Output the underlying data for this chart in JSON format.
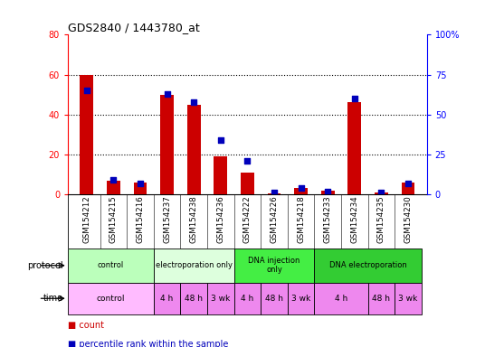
{
  "title": "GDS2840 / 1443780_at",
  "samples": [
    "GSM154212",
    "GSM154215",
    "GSM154216",
    "GSM154237",
    "GSM154238",
    "GSM154236",
    "GSM154222",
    "GSM154226",
    "GSM154218",
    "GSM154233",
    "GSM154234",
    "GSM154235",
    "GSM154230"
  ],
  "counts": [
    60,
    7,
    6,
    50,
    45,
    19,
    11,
    0.5,
    3,
    2,
    46,
    1,
    6
  ],
  "percentile_ranks": [
    65,
    9,
    7,
    63,
    58,
    34,
    21,
    1,
    4,
    2,
    60,
    1,
    7
  ],
  "ylim_left": [
    0,
    80
  ],
  "ylim_right": [
    0,
    100
  ],
  "yticks_left": [
    0,
    20,
    40,
    60,
    80
  ],
  "yticks_right": [
    0,
    25,
    50,
    75,
    100
  ],
  "ytick_labels_left": [
    "0",
    "20",
    "40",
    "60",
    "80"
  ],
  "ytick_labels_right": [
    "0",
    "25",
    "50",
    "75",
    "100%"
  ],
  "bar_color": "#cc0000",
  "dot_color": "#0000bb",
  "protocol_row": [
    {
      "label": "control",
      "start": 0,
      "end": 3,
      "color": "#bbffbb"
    },
    {
      "label": "electroporation only",
      "start": 3,
      "end": 6,
      "color": "#ddffdd"
    },
    {
      "label": "DNA injection\nonly",
      "start": 6,
      "end": 9,
      "color": "#44ee44"
    },
    {
      "label": "DNA electroporation",
      "start": 9,
      "end": 13,
      "color": "#33cc33"
    }
  ],
  "time_row": [
    {
      "label": "control",
      "start": 0,
      "end": 3,
      "color": "#ffbbff"
    },
    {
      "label": "4 h",
      "start": 3,
      "end": 4,
      "color": "#ee88ee"
    },
    {
      "label": "48 h",
      "start": 4,
      "end": 5,
      "color": "#ee88ee"
    },
    {
      "label": "3 wk",
      "start": 5,
      "end": 6,
      "color": "#ee88ee"
    },
    {
      "label": "4 h",
      "start": 6,
      "end": 7,
      "color": "#ee88ee"
    },
    {
      "label": "48 h",
      "start": 7,
      "end": 8,
      "color": "#ee88ee"
    },
    {
      "label": "3 wk",
      "start": 8,
      "end": 9,
      "color": "#ee88ee"
    },
    {
      "label": "4 h",
      "start": 9,
      "end": 11,
      "color": "#ee88ee"
    },
    {
      "label": "48 h",
      "start": 11,
      "end": 12,
      "color": "#ee88ee"
    },
    {
      "label": "3 wk",
      "start": 12,
      "end": 13,
      "color": "#ee88ee"
    }
  ],
  "legend_count_color": "#cc0000",
  "legend_pct_color": "#0000bb",
  "background_color": "#ffffff",
  "tick_area_color": "#cccccc",
  "n_samples": 13
}
